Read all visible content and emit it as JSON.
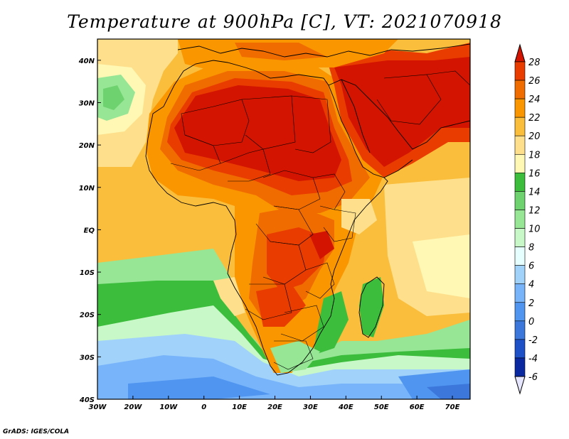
{
  "title": "Temperature at 900hPa [C], VT: 2021070918",
  "credit": "GrADS: IGES/COLA",
  "map": {
    "lon_range": [
      -30,
      75
    ],
    "lat_range": [
      -40,
      45
    ],
    "x_ticks": [
      "30W",
      "20W",
      "10W",
      "0",
      "10E",
      "20E",
      "30E",
      "40E",
      "50E",
      "60E",
      "70E"
    ],
    "y_ticks": [
      "40S",
      "30S",
      "20S",
      "10S",
      "EQ",
      "10N",
      "20N",
      "30N",
      "40N"
    ]
  },
  "colorbar": {
    "labels": [
      "28",
      "26",
      "24",
      "22",
      "20",
      "18",
      "16",
      "14",
      "12",
      "10",
      "8",
      "6",
      "4",
      "2",
      "0",
      "-2",
      "-4",
      "-6"
    ],
    "colors": [
      "#d21400",
      "#e83c00",
      "#f06c00",
      "#fa9600",
      "#fabe3c",
      "#fee08c",
      "#fef8b4",
      "#3cbe3c",
      "#6ed26e",
      "#96e696",
      "#c8f8c8",
      "#e6ffff",
      "#a0d2fa",
      "#78b4fa",
      "#5096f0",
      "#3c78dc",
      "#1e50c8",
      "#0a28a0",
      "#000064"
    ]
  }
}
